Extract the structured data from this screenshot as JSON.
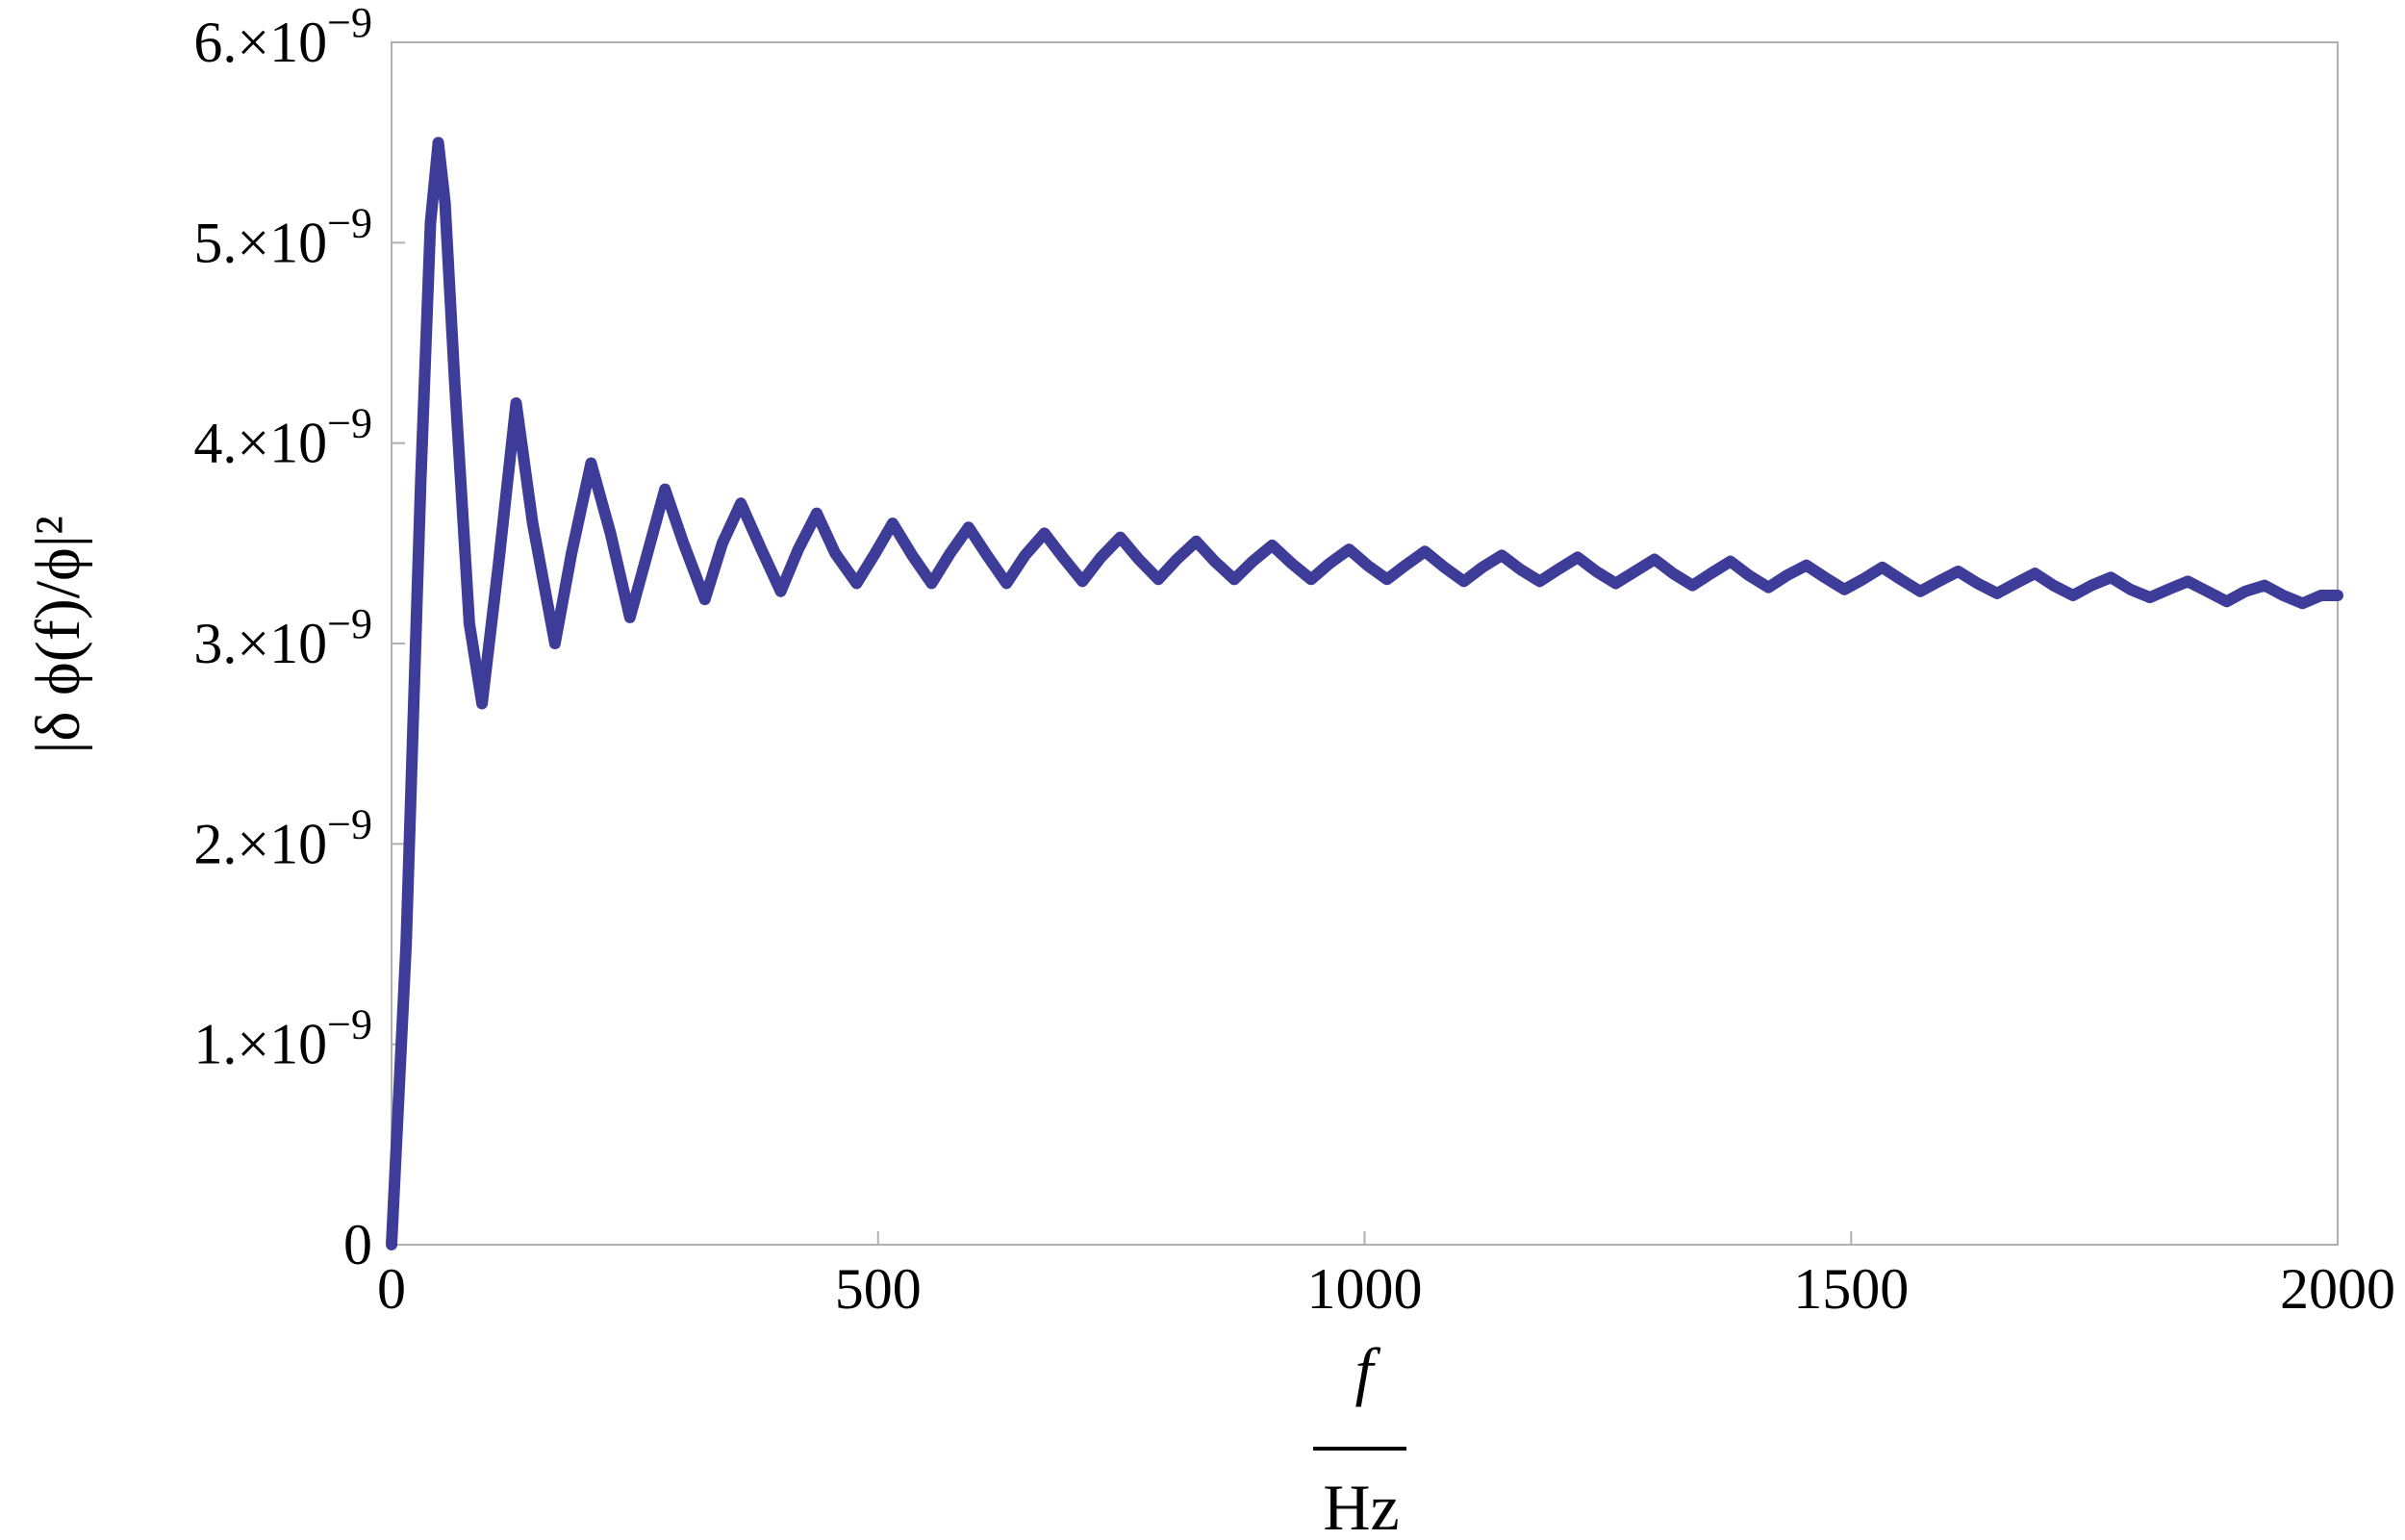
{
  "chart_data": {
    "type": "line",
    "title": "",
    "xlabel_numerator": "f",
    "xlabel_denominator": "Hz",
    "ylabel": "|δ ϕ(f)/ϕ|²",
    "xlim": [
      0,
      2000
    ],
    "ylim": [
      0,
      6e-09
    ],
    "grid": false,
    "line_color": "#3d3d99",
    "x_ticks": [
      {
        "value": 0,
        "label": "0"
      },
      {
        "value": 500,
        "label": "500"
      },
      {
        "value": 1000,
        "label": "1000"
      },
      {
        "value": 1500,
        "label": "1500"
      },
      {
        "value": 2000,
        "label": "2000"
      }
    ],
    "y_ticks": [
      {
        "value": 0,
        "mantissa": "0",
        "exponent": ""
      },
      {
        "value": 1e-09,
        "mantissa": "1.×10",
        "exponent": "−9"
      },
      {
        "value": 2e-09,
        "mantissa": "2.×10",
        "exponent": "−9"
      },
      {
        "value": 3e-09,
        "mantissa": "3.×10",
        "exponent": "−9"
      },
      {
        "value": 4e-09,
        "mantissa": "4.×10",
        "exponent": "−9"
      },
      {
        "value": 5e-09,
        "mantissa": "5.×10",
        "exponent": "−9"
      },
      {
        "value": 6e-09,
        "mantissa": "6.×10",
        "exponent": "−9"
      }
    ],
    "series": [
      {
        "x": [
          0,
          15,
          30,
          40,
          48,
          55,
          65,
          80,
          93,
          110,
          128,
          145,
          168,
          185,
          205,
          225,
          245,
          263,
          281,
          300,
          322,
          340,
          359,
          380,
          400,
          418,
          437,
          456,
          478,
          497,
          515,
          535,
          555,
          574,
          593,
          612,
          632,
          651,
          671,
          690,
          710,
          729,
          749,
          768,
          788,
          807,
          827,
          846,
          866,
          885,
          905,
          925,
          945,
          964,
          984,
          1003,
          1023,
          1042,
          1062,
          1082,
          1102,
          1121,
          1141,
          1160,
          1180,
          1199,
          1219,
          1238,
          1258,
          1278,
          1298,
          1317,
          1337,
          1356,
          1376,
          1395,
          1415,
          1434,
          1454,
          1473,
          1493,
          1512,
          1532,
          1551,
          1571,
          1590,
          1610,
          1630,
          1650,
          1669,
          1689,
          1708,
          1728,
          1747,
          1767,
          1787,
          1807,
          1826,
          1846,
          1866,
          1886,
          1905,
          1925,
          1944,
          1964,
          1983,
          2000
        ],
        "y": [
          0,
          1.5e-09,
          3.8e-09,
          5.1e-09,
          5.5e-09,
          5.2e-09,
          4.3e-09,
          3.1e-09,
          2.7e-09,
          3.4e-09,
          4.2e-09,
          3.6e-09,
          3e-09,
          3.45e-09,
          3.9e-09,
          3.55e-09,
          3.13e-09,
          3.45e-09,
          3.77e-09,
          3.5e-09,
          3.22e-09,
          3.5e-09,
          3.7e-09,
          3.47e-09,
          3.26e-09,
          3.47e-09,
          3.65e-09,
          3.45e-09,
          3.3e-09,
          3.45e-09,
          3.6e-09,
          3.44e-09,
          3.3e-09,
          3.45e-09,
          3.58e-09,
          3.44e-09,
          3.3e-09,
          3.44e-09,
          3.55e-09,
          3.43e-09,
          3.31e-09,
          3.43e-09,
          3.53e-09,
          3.42e-09,
          3.32e-09,
          3.42e-09,
          3.51e-09,
          3.41e-09,
          3.32e-09,
          3.41e-09,
          3.49e-09,
          3.4e-09,
          3.32e-09,
          3.4e-09,
          3.47e-09,
          3.39e-09,
          3.32e-09,
          3.39e-09,
          3.46e-09,
          3.38e-09,
          3.31e-09,
          3.38e-09,
          3.44e-09,
          3.37e-09,
          3.31e-09,
          3.37e-09,
          3.43e-09,
          3.36e-09,
          3.3e-09,
          3.36e-09,
          3.42e-09,
          3.35e-09,
          3.29e-09,
          3.35e-09,
          3.41e-09,
          3.34e-09,
          3.28e-09,
          3.34e-09,
          3.39e-09,
          3.33e-09,
          3.27e-09,
          3.32e-09,
          3.38e-09,
          3.32e-09,
          3.26e-09,
          3.31e-09,
          3.36e-09,
          3.3e-09,
          3.25e-09,
          3.3e-09,
          3.35e-09,
          3.29e-09,
          3.24e-09,
          3.29e-09,
          3.33e-09,
          3.27e-09,
          3.23e-09,
          3.27e-09,
          3.31e-09,
          3.26e-09,
          3.21e-09,
          3.26e-09,
          3.29e-09,
          3.24e-09,
          3.2e-09,
          3.24e-09,
          3.24e-09
        ]
      }
    ]
  }
}
